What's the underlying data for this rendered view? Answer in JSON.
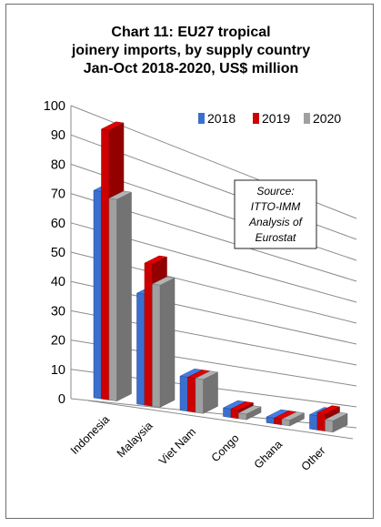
{
  "chart_data": {
    "type": "bar",
    "title": [
      "Chart 11: EU27 tropical",
      "joinery imports, by supply country",
      "Jan-Oct 2018-2020, US$ million"
    ],
    "categories": [
      "Indonesia",
      "Malaysia",
      "Viet Nam",
      "Congo",
      "Ghana",
      "Other"
    ],
    "series": [
      {
        "name": "2018",
        "color": "#3a6fcf",
        "values": [
          73,
          39,
          12,
          3,
          2,
          5
        ]
      },
      {
        "name": "2019",
        "color": "#cc0000",
        "values": [
          95,
          50,
          12,
          3,
          2,
          6
        ]
      },
      {
        "name": "2020",
        "color": "#a0a0a0",
        "values": [
          71,
          43,
          12,
          2,
          2,
          4
        ]
      }
    ],
    "ylim": [
      0,
      100
    ],
    "yticks": [
      0,
      10,
      20,
      30,
      40,
      50,
      60,
      70,
      80,
      90,
      100
    ],
    "grid": true,
    "legend_position": "top-right",
    "annotation": [
      "Source:",
      "ITTO-IMM",
      "Analysis of",
      "Eurostat"
    ]
  }
}
